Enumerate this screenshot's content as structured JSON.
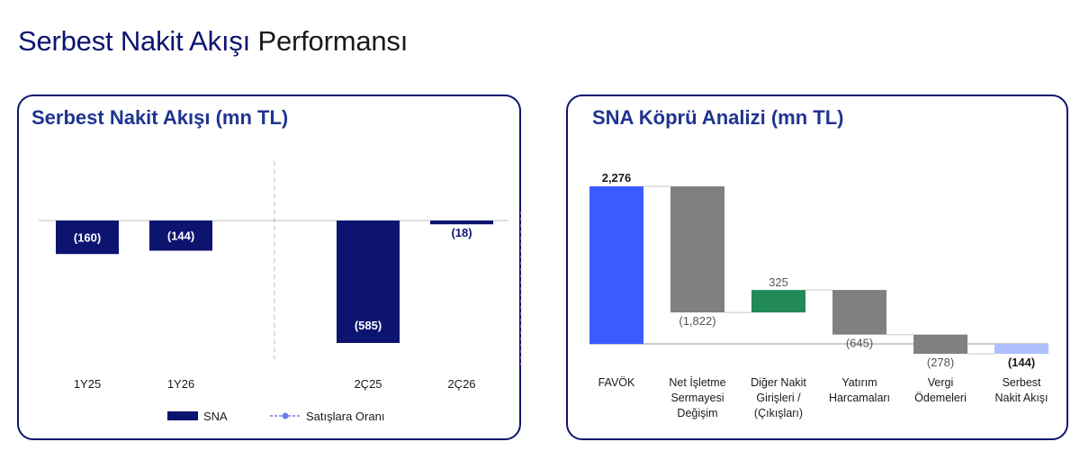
{
  "page": {
    "title_accent": "Serbest Nakit Akışı",
    "title_rest": " Performansı"
  },
  "colors": {
    "navy": "#0d1470",
    "title_blue": "#1f3491",
    "favok_blue": "#3a5cff",
    "gray": "#808080",
    "green": "#218a56",
    "light_blue": "#aec0ff",
    "legend_line": "#6d7de8"
  },
  "left_panel": {
    "title": "Serbest Nakit Akışı (mn TL)",
    "legend": [
      {
        "label": "SNA",
        "style": "bar",
        "color": "#0d1470"
      },
      {
        "label": "Satışlara Oranı",
        "style": "dashed-line",
        "color": "#6d7de8"
      }
    ]
  },
  "right_panel": {
    "title": "SNA Köprü Analizi (mn TL)"
  },
  "chart_data": [
    {
      "type": "bar",
      "title": "Serbest Nakit Akışı (mn TL)",
      "categories": [
        "1Y25",
        "1Y26",
        "2Ç25",
        "2Ç26"
      ],
      "series": [
        {
          "name": "SNA",
          "values": [
            -160,
            -144,
            -585,
            -18
          ]
        }
      ],
      "data_labels": [
        "(160)",
        "(144)",
        "(585)",
        "(18)"
      ],
      "legend": [
        "SNA",
        "Satışlara Oranı"
      ],
      "legend_position": "bottom",
      "grid": false,
      "ylim": [
        -585,
        0
      ]
    },
    {
      "type": "bar",
      "subtype": "waterfall",
      "title": "SNA Köprü Analizi (mn TL)",
      "categories": [
        [
          "FAVÖK"
        ],
        [
          "Net İşletme",
          "Sermayesi",
          "Değişim"
        ],
        [
          "Diğer Nakit",
          "Girişleri /",
          "(Çıkışları)"
        ],
        [
          "Yatırım",
          "Harcamaları"
        ],
        [
          "Vergi",
          "Ödemeleri"
        ],
        [
          "Serbest",
          "Nakit Akışı"
        ]
      ],
      "values": [
        2276,
        -1822,
        325,
        -645,
        -278,
        -144
      ],
      "data_labels": [
        "2,276",
        "(1,822)",
        "325",
        "(645)",
        "(278)",
        "(144)"
      ],
      "kinds": [
        "total",
        "delta",
        "delta",
        "delta",
        "delta",
        "total"
      ],
      "bar_colors": [
        "#3a5cff",
        "#808080",
        "#218a56",
        "#808080",
        "#808080",
        "#aec0ff"
      ],
      "grid": false
    }
  ]
}
